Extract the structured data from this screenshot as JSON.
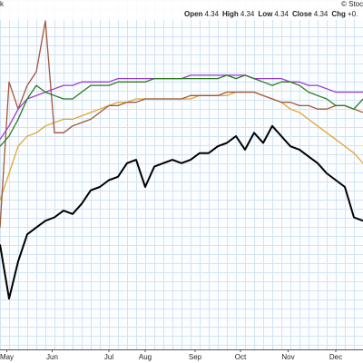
{
  "header": {
    "corner": "k",
    "source": "© Stoc",
    "fields": [
      {
        "label": "Open",
        "value": "4.34"
      },
      {
        "label": "High",
        "value": "4.34"
      },
      {
        "label": "Low",
        "value": "4.34"
      },
      {
        "label": "Close",
        "value": "4.34"
      },
      {
        "label": "Chg",
        "value": "+0."
      }
    ]
  },
  "chart_data": {
    "type": "line",
    "x": [
      0,
      4,
      8,
      12,
      16,
      20,
      24,
      28,
      32,
      36,
      40,
      44,
      48,
      52,
      56,
      60,
      64,
      68,
      72,
      76,
      80,
      84,
      88,
      92,
      96,
      100,
      104,
      108,
      112,
      116,
      120,
      124,
      128,
      132,
      136,
      140,
      144,
      148,
      152,
      156,
      160
    ],
    "xlim": [
      0,
      160
    ],
    "ylim": [
      0,
      100
    ],
    "xticks": [
      {
        "value": 3,
        "label": "May"
      },
      {
        "value": 23,
        "label": "Jun"
      },
      {
        "value": 48,
        "label": "Jul"
      },
      {
        "value": 64,
        "label": "Aug"
      },
      {
        "value": 86,
        "label": "Sep"
      },
      {
        "value": 106,
        "label": "Oct"
      },
      {
        "value": 127,
        "label": "Nov"
      },
      {
        "value": 148,
        "label": "Dec"
      }
    ],
    "series": [
      {
        "color": "#e0a830",
        "values": [
          44,
          52,
          60,
          63,
          64,
          66,
          67,
          68,
          68,
          69,
          70,
          71,
          72,
          73,
          73,
          74,
          74,
          74,
          74,
          74,
          74,
          74,
          75,
          75,
          75,
          75,
          76,
          76,
          76,
          75,
          74,
          73,
          71,
          70,
          68,
          66,
          64,
          62,
          60,
          58,
          55
        ]
      },
      {
        "color": "#a0583a",
        "values": [
          36,
          79,
          71,
          78,
          82,
          97,
          64,
          64,
          66,
          67,
          68,
          70,
          72,
          72,
          73,
          73,
          74,
          74,
          74,
          74,
          74,
          75,
          75,
          75,
          75,
          76,
          76,
          76,
          76,
          75,
          74,
          73,
          73,
          72,
          72,
          71,
          71,
          72,
          72,
          71,
          70
        ]
      },
      {
        "color": "#9a3ccf",
        "values": [
          62,
          66,
          71,
          74,
          75,
          76,
          77,
          78,
          78,
          79,
          79,
          79,
          79,
          80,
          80,
          80,
          80,
          80,
          80,
          80,
          80,
          81,
          81,
          81,
          81,
          81,
          81,
          81,
          80,
          80,
          80,
          80,
          79,
          79,
          78,
          78,
          77,
          76,
          76,
          76,
          76
        ]
      },
      {
        "color": "#2a7a1e",
        "values": [
          60,
          63,
          68,
          74,
          78,
          76,
          75,
          74,
          74,
          76,
          78,
          78,
          78,
          79,
          79,
          79,
          79,
          80,
          80,
          80,
          80,
          80,
          80,
          80,
          80,
          81,
          80,
          81,
          80,
          79,
          78,
          79,
          79,
          78,
          76,
          75,
          74,
          72,
          72,
          71,
          74
        ]
      },
      {
        "color": "#000000",
        "values": [
          31,
          15,
          26,
          34,
          36,
          38,
          39,
          41,
          40,
          43,
          47,
          48,
          50,
          51,
          55,
          56,
          48,
          54,
          55,
          56,
          55,
          56,
          58,
          58,
          60,
          61,
          63,
          59,
          64,
          61,
          66,
          63,
          60,
          59,
          57,
          55,
          52,
          50,
          48,
          39,
          38
        ]
      }
    ]
  }
}
